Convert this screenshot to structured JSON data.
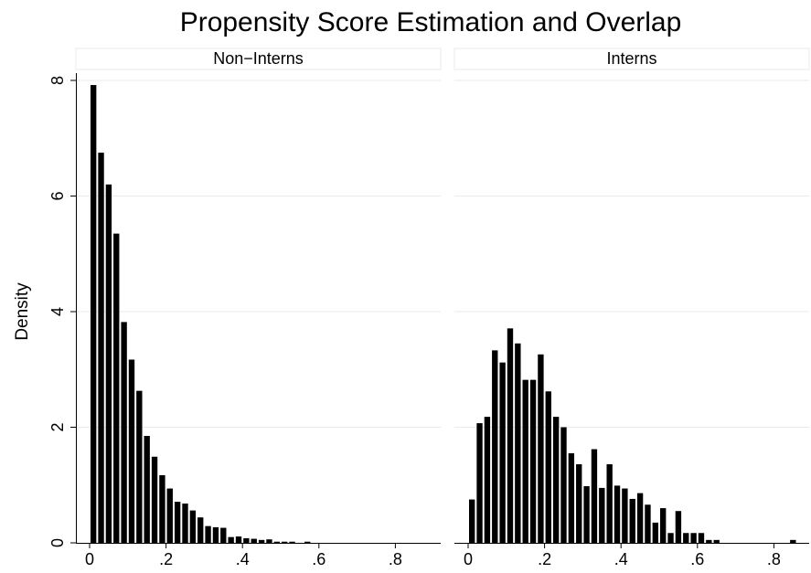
{
  "chart_data": {
    "type": "bar",
    "title": "Propensity Score Estimation and Overlap",
    "ylabel": "Density",
    "xlabel": "",
    "xlim": [
      0,
      0.86
    ],
    "ylim": [
      0,
      8.2
    ],
    "x_ticks": [
      0,
      0.2,
      0.4,
      0.6,
      0.8
    ],
    "x_tick_labels": [
      "0",
      ".2",
      ".4",
      ".6",
      ".8"
    ],
    "y_ticks": [
      0,
      2,
      4,
      6,
      8
    ],
    "y_tick_labels": [
      "0",
      "2",
      "4",
      "6",
      "8"
    ],
    "grid": true,
    "bin_width": 0.02,
    "panels": [
      {
        "name": "Non−Interns",
        "bins": [
          {
            "x": 0.01,
            "y": 7.92
          },
          {
            "x": 0.03,
            "y": 6.75
          },
          {
            "x": 0.05,
            "y": 6.2
          },
          {
            "x": 0.07,
            "y": 5.35
          },
          {
            "x": 0.09,
            "y": 3.82
          },
          {
            "x": 0.11,
            "y": 3.17
          },
          {
            "x": 0.13,
            "y": 2.63
          },
          {
            "x": 0.15,
            "y": 1.85
          },
          {
            "x": 0.17,
            "y": 1.49
          },
          {
            "x": 0.19,
            "y": 1.17
          },
          {
            "x": 0.21,
            "y": 0.94
          },
          {
            "x": 0.23,
            "y": 0.71
          },
          {
            "x": 0.25,
            "y": 0.68
          },
          {
            "x": 0.27,
            "y": 0.56
          },
          {
            "x": 0.29,
            "y": 0.44
          },
          {
            "x": 0.31,
            "y": 0.29
          },
          {
            "x": 0.33,
            "y": 0.27
          },
          {
            "x": 0.35,
            "y": 0.26
          },
          {
            "x": 0.37,
            "y": 0.1
          },
          {
            "x": 0.39,
            "y": 0.11
          },
          {
            "x": 0.41,
            "y": 0.08
          },
          {
            "x": 0.43,
            "y": 0.07
          },
          {
            "x": 0.45,
            "y": 0.05
          },
          {
            "x": 0.47,
            "y": 0.06
          },
          {
            "x": 0.49,
            "y": 0.02
          },
          {
            "x": 0.51,
            "y": 0.02
          },
          {
            "x": 0.53,
            "y": 0.02
          },
          {
            "x": 0.55,
            "y": 0.0
          },
          {
            "x": 0.57,
            "y": 0.02
          }
        ]
      },
      {
        "name": "Interns",
        "bins": [
          {
            "x": 0.01,
            "y": 0.75
          },
          {
            "x": 0.03,
            "y": 2.07
          },
          {
            "x": 0.05,
            "y": 2.18
          },
          {
            "x": 0.07,
            "y": 3.33
          },
          {
            "x": 0.09,
            "y": 3.12
          },
          {
            "x": 0.11,
            "y": 3.71
          },
          {
            "x": 0.13,
            "y": 3.45
          },
          {
            "x": 0.15,
            "y": 2.82
          },
          {
            "x": 0.17,
            "y": 2.82
          },
          {
            "x": 0.19,
            "y": 3.26
          },
          {
            "x": 0.21,
            "y": 2.62
          },
          {
            "x": 0.23,
            "y": 2.18
          },
          {
            "x": 0.25,
            "y": 2.0
          },
          {
            "x": 0.27,
            "y": 1.55
          },
          {
            "x": 0.29,
            "y": 1.36
          },
          {
            "x": 0.31,
            "y": 0.98
          },
          {
            "x": 0.33,
            "y": 1.62
          },
          {
            "x": 0.35,
            "y": 0.95
          },
          {
            "x": 0.37,
            "y": 1.36
          },
          {
            "x": 0.39,
            "y": 0.99
          },
          {
            "x": 0.41,
            "y": 0.94
          },
          {
            "x": 0.43,
            "y": 0.76
          },
          {
            "x": 0.45,
            "y": 0.86
          },
          {
            "x": 0.47,
            "y": 0.66
          },
          {
            "x": 0.49,
            "y": 0.35
          },
          {
            "x": 0.51,
            "y": 0.6
          },
          {
            "x": 0.53,
            "y": 0.17
          },
          {
            "x": 0.55,
            "y": 0.55
          },
          {
            "x": 0.57,
            "y": 0.17
          },
          {
            "x": 0.59,
            "y": 0.17
          },
          {
            "x": 0.61,
            "y": 0.17
          },
          {
            "x": 0.63,
            "y": 0.05
          },
          {
            "x": 0.65,
            "y": 0.05
          },
          {
            "x": 0.85,
            "y": 0.05
          }
        ]
      }
    ]
  },
  "colors": {
    "bar": "#000000",
    "strip_border": "#e8e8e8",
    "gridline": "#eaeaea",
    "axis": "#000000"
  }
}
